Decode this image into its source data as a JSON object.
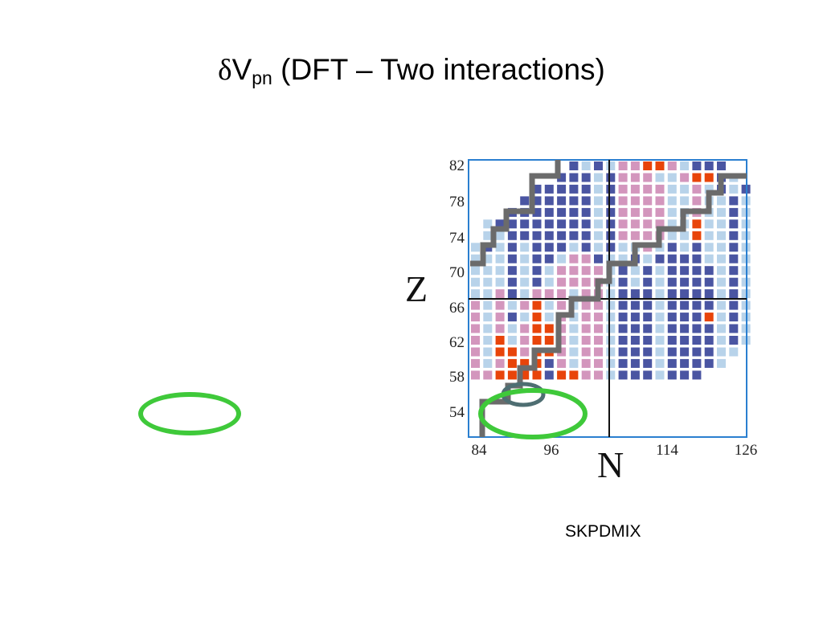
{
  "title": {
    "delta": "δ",
    "v": "V",
    "sub": "pn",
    "rest": " (DFT – Two interactions)"
  },
  "caption": "SKPDMIX",
  "colors": {
    "dark_blue": "#4a55a2",
    "light_blue": "#b8d3ea",
    "pink": "#d396bd",
    "red": "#e8440a",
    "gray_line": "#6b6b6b",
    "ring_green": "#3fc93a",
    "frame": "#2a7fd0"
  },
  "chart_data": {
    "type": "heatmap",
    "xlabel": "N",
    "ylabel": "Z",
    "x_ticks": [
      "84",
      "96",
      "114",
      "126"
    ],
    "y_ticks": [
      "82",
      "78",
      "74",
      "70",
      "66",
      "62",
      "58",
      "54"
    ],
    "legend": "none",
    "grid": false,
    "categories": {
      "B": "dark_blue",
      "L": "light_blue",
      "P": "pink",
      "R": "red"
    },
    "grid_note": "rows top (Z=82) to bottom (Z=52), columns N=84..126 in steps of 2; '.' = empty",
    "rows": [
      "........BLBLPPRRPLBBB",
      ".......BBBLBPPPLLPRRBL",
      ".....BBBBBLBPPPPLLPLBLB",
      "....BBBBBBLBPPPPLLPLLBL",
      "...BBBBBBBLBPPPPLLPLLBL",
      ".LBBBBBBBBLBPPPPLLRLLBL",
      ".LLBBBBBBBLBPPPPLLRLLBL",
      "LBLBLBBBLBLBLLPLBLBLLBL",
      "LLLBLBBLPPBLLBLBBBBLLBL",
      "LLLBLBLPPPPLBLBLBBBBLBL",
      "LLLBLBLPPPPLBLBLBBBBLBL",
      "LLPBLPPPLPPLBBBLBBBBLBL",
      "PLPLPRLPLPPLBBBLBBBBLBL",
      "PLPBLRLPLPPLBBBLBBBRLBL",
      "PLPLPRRPLPPLBBBLBBBBLBL",
      "PLRLPRRPLPPLBBBLBBBBLBL",
      "PLRRPRRPLPPLBBBLBBBBLL",
      "PLPRRRBPLPPLBBBLBBBBL",
      "PPRRRRBRRPPLBBBLBBB"
    ]
  }
}
